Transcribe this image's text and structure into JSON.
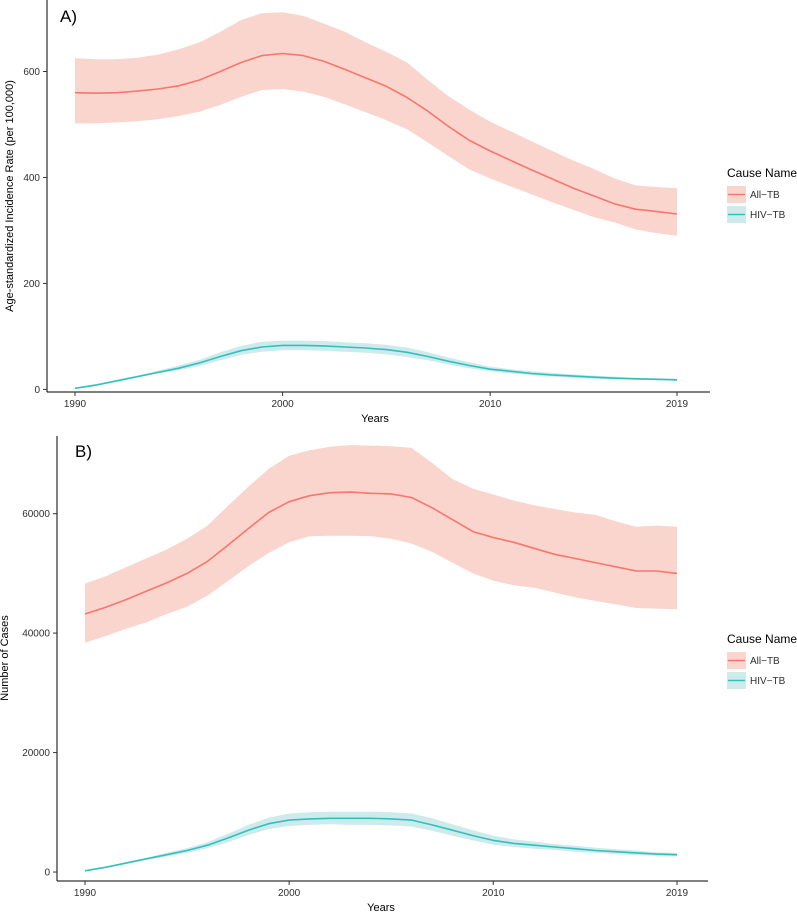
{
  "chart_data": [
    {
      "type": "line",
      "panel_tag": "A)",
      "xlabel": "Years",
      "ylabel": "Age-standardized Incidence Rate (per 100,000)",
      "xlim": [
        1990,
        2019
      ],
      "ylim": [
        -5,
        735
      ],
      "x_ticks": [
        1990,
        2000,
        2010,
        2019
      ],
      "y_ticks": [
        0,
        200,
        400,
        600
      ],
      "legend_title": "Cause Name",
      "legend_position": "right",
      "x": [
        1990,
        1991,
        1992,
        1993,
        1994,
        1995,
        1996,
        1997,
        1998,
        1999,
        2000,
        2001,
        2002,
        2003,
        2004,
        2005,
        2006,
        2007,
        2008,
        2009,
        2010,
        2011,
        2012,
        2013,
        2014,
        2015,
        2016,
        2017,
        2018,
        2019
      ],
      "series": [
        {
          "name": "All−TB",
          "color": "#F8766D",
          "band_color": "#F9D5CE",
          "values": [
            560,
            559,
            560,
            563,
            567,
            573,
            584,
            600,
            617,
            630,
            634,
            630,
            619,
            604,
            588,
            572,
            551,
            525,
            496,
            470,
            450,
            432,
            414,
            397,
            380,
            365,
            350,
            340,
            336,
            331
          ],
          "upper": [
            625,
            623,
            623,
            626,
            632,
            642,
            655,
            675,
            697,
            710,
            712,
            705,
            690,
            675,
            655,
            637,
            617,
            584,
            553,
            528,
            505,
            487,
            468,
            450,
            432,
            416,
            398,
            385,
            382,
            380
          ],
          "lower": [
            502,
            502,
            504,
            506,
            510,
            516,
            524,
            537,
            552,
            565,
            567,
            562,
            552,
            538,
            523,
            508,
            491,
            466,
            440,
            415,
            398,
            383,
            368,
            353,
            339,
            325,
            315,
            302,
            295,
            290
          ]
        },
        {
          "name": "HIV−TB",
          "color": "#32BFC0",
          "band_color": "#CDEBEB",
          "values": [
            2,
            8,
            16,
            24,
            32,
            40,
            50,
            62,
            73,
            80,
            83,
            83,
            82,
            80,
            78,
            75,
            70,
            62,
            53,
            45,
            38,
            34,
            30,
            27,
            25,
            23,
            21,
            20,
            19,
            18
          ],
          "upper": [
            3,
            10,
            18,
            26,
            35,
            45,
            56,
            70,
            82,
            90,
            92,
            92,
            91,
            89,
            87,
            84,
            79,
            70,
            60,
            51,
            43,
            38,
            34,
            31,
            28,
            26,
            24,
            22,
            21,
            20
          ],
          "lower": [
            1,
            6,
            14,
            22,
            30,
            36,
            44,
            55,
            65,
            71,
            74,
            74,
            73,
            71,
            69,
            66,
            61,
            55,
            47,
            40,
            34,
            30,
            27,
            24,
            22,
            20,
            19,
            18,
            17,
            16
          ]
        }
      ]
    },
    {
      "type": "line",
      "panel_tag": "B)",
      "xlabel": "Years",
      "ylabel": "Number of Cases",
      "xlim": [
        1990,
        2019
      ],
      "ylim": [
        -1500,
        73000
      ],
      "x_ticks": [
        1990,
        2000,
        2010,
        2019
      ],
      "y_ticks": [
        0,
        20000,
        40000,
        60000
      ],
      "legend_title": "Cause Name",
      "legend_position": "right",
      "x": [
        1990,
        1991,
        1992,
        1993,
        1994,
        1995,
        1996,
        1997,
        1998,
        1999,
        2000,
        2001,
        2002,
        2003,
        2004,
        2005,
        2006,
        2007,
        2008,
        2009,
        2010,
        2011,
        2012,
        2013,
        2014,
        2015,
        2016,
        2017,
        2018,
        2019
      ],
      "series": [
        {
          "name": "All−TB",
          "color": "#F8766D",
          "band_color": "#F9D5CE",
          "values": [
            43200,
            44300,
            45600,
            47000,
            48400,
            50000,
            52000,
            54700,
            57500,
            60200,
            62000,
            63000,
            63500,
            63600,
            63400,
            63300,
            62700,
            61000,
            59000,
            57000,
            56000,
            55200,
            54200,
            53200,
            52500,
            51800,
            51100,
            50400,
            50400,
            50000
          ],
          "upper": [
            48300,
            49500,
            51000,
            52500,
            54000,
            55800,
            58000,
            61300,
            64500,
            67500,
            69700,
            70600,
            71200,
            71500,
            71400,
            71300,
            71000,
            68500,
            65800,
            64200,
            63200,
            62200,
            61400,
            60800,
            60200,
            59800,
            58700,
            57800,
            58000,
            57800
          ],
          "lower": [
            38400,
            39500,
            40700,
            41800,
            43200,
            44400,
            46300,
            48700,
            51200,
            53400,
            55200,
            56200,
            56300,
            56300,
            56200,
            55800,
            55000,
            53600,
            51800,
            50000,
            48800,
            48000,
            47600,
            46800,
            46000,
            45400,
            44800,
            44200,
            44100,
            44000
          ]
        },
        {
          "name": "HIV−TB",
          "color": "#32BFC0",
          "band_color": "#CDEBEB",
          "values": [
            200,
            800,
            1500,
            2200,
            2900,
            3600,
            4500,
            5700,
            7000,
            8100,
            8700,
            8900,
            9000,
            9000,
            9000,
            8900,
            8700,
            7900,
            7000,
            6100,
            5300,
            4800,
            4500,
            4200,
            3900,
            3600,
            3400,
            3200,
            3000,
            2900
          ],
          "upper": [
            300,
            900,
            1700,
            2400,
            3200,
            4000,
            5000,
            6400,
            7900,
            9100,
            9800,
            10000,
            10100,
            10100,
            10100,
            10000,
            9800,
            9000,
            8000,
            7000,
            6100,
            5500,
            5100,
            4700,
            4400,
            4100,
            3800,
            3600,
            3300,
            3200
          ],
          "lower": [
            100,
            700,
            1300,
            2000,
            2600,
            3200,
            4000,
            5000,
            6200,
            7200,
            7700,
            7900,
            8000,
            7900,
            7900,
            7800,
            7600,
            6900,
            6100,
            5300,
            4600,
            4200,
            3900,
            3700,
            3400,
            3200,
            3000,
            2800,
            2700,
            2600
          ]
        }
      ]
    }
  ]
}
